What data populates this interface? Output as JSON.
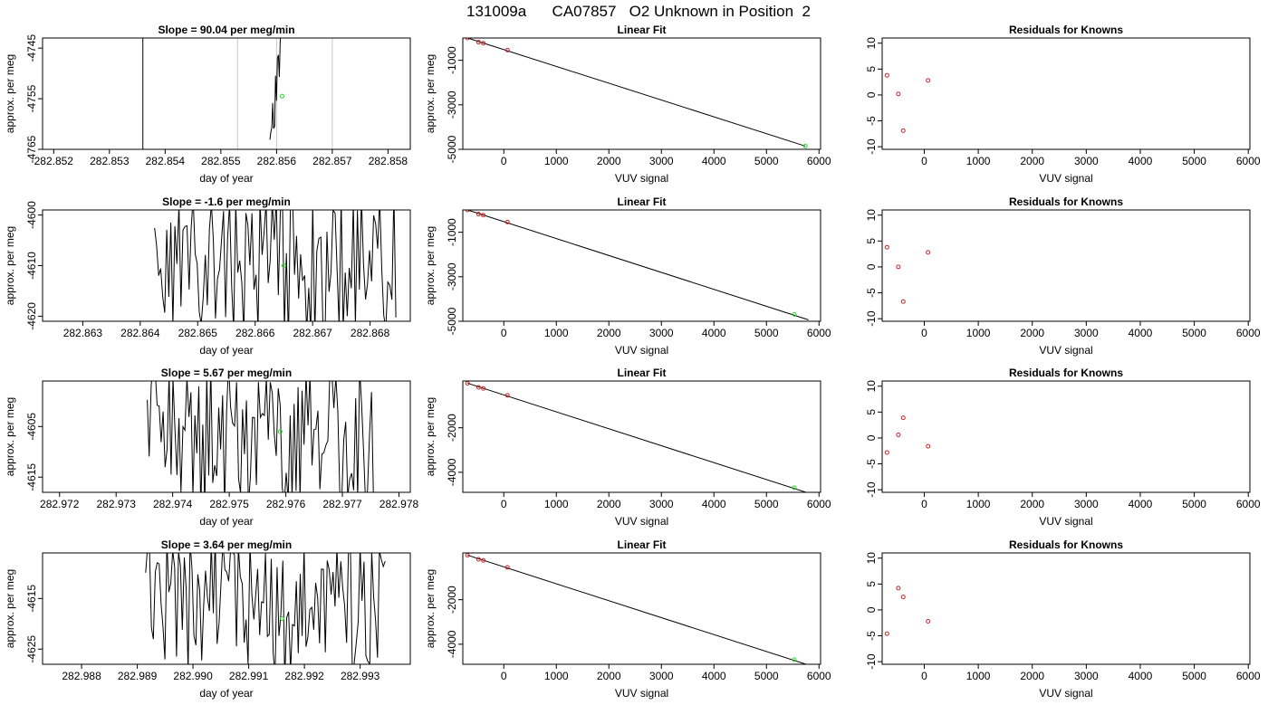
{
  "figure": {
    "title": "131009a      CA07857   O2 Unknown in Position  2"
  },
  "chart_data": [
    {
      "panel": "row1-timeseries",
      "type": "line",
      "title": "Slope =  90.04  per meg/min",
      "xlabel": "day of year",
      "ylabel": "approx. per meg",
      "xlim": [
        282.8518,
        282.8584
      ],
      "ylim": [
        -4765,
        -4743
      ],
      "xticks": [
        282.852,
        282.853,
        282.854,
        282.855,
        282.856,
        282.857,
        282.858
      ],
      "xtick_labels": [
        "282.852",
        "282.853",
        "282.854",
        "282.855",
        "282.856",
        "282.857",
        "282.858"
      ],
      "yticks": [
        -4745,
        -4755,
        -4765
      ],
      "ytick_labels": [
        "-4745",
        "-4755",
        "-4765"
      ],
      "vlines_black": [
        282.8536
      ],
      "vlines_gray": [
        282.8553,
        282.856,
        282.857
      ],
      "trace": {
        "seed": 11,
        "x_start": 282.85588,
        "x_end": 282.8561,
        "n": 14,
        "style": "ramp"
      },
      "green_marker": {
        "x": 282.8561,
        "y": -4754.5
      }
    },
    {
      "panel": "row1-linearfit",
      "type": "scatter",
      "title": "Linear Fit",
      "xlabel": "VUV signal",
      "ylabel": "approx. per meg",
      "xlim": [
        -780,
        6030
      ],
      "ylim": [
        -5000,
        0
      ],
      "xticks": [
        0,
        1000,
        2000,
        3000,
        4000,
        5000,
        6000
      ],
      "xtick_labels": [
        "0",
        "1000",
        "2000",
        "3000",
        "4000",
        "5000",
        "6000"
      ],
      "yticks": [
        -1000,
        -3000,
        -5000
      ],
      "ytick_labels": [
        "-1000",
        "-3000",
        "-5000"
      ],
      "knowns": [
        [
          -690,
          0
        ],
        [
          -480,
          -185
        ],
        [
          -390,
          -235
        ],
        [
          70,
          -545
        ]
      ],
      "unknown": [
        5740,
        -4855
      ],
      "fit_line": [
        [
          -690,
          0
        ],
        [
          5740,
          -4855
        ]
      ]
    },
    {
      "panel": "row1-residuals",
      "type": "scatter",
      "title": "Residuals for Knowns",
      "xlabel": "VUV signal",
      "xlim": [
        -780,
        6030
      ],
      "ylim": [
        -10.5,
        11
      ],
      "xticks": [
        0,
        1000,
        2000,
        3000,
        4000,
        5000,
        6000
      ],
      "xtick_labels": [
        "0",
        "1000",
        "2000",
        "3000",
        "4000",
        "5000",
        "6000"
      ],
      "yticks": [
        10,
        5,
        0,
        -5,
        -10
      ],
      "ytick_labels": [
        "10",
        "5",
        "0",
        "-5",
        "-10"
      ],
      "points": [
        [
          -690,
          3.8
        ],
        [
          -480,
          0.2
        ],
        [
          -390,
          -6.9
        ],
        [
          70,
          2.8
        ]
      ]
    },
    {
      "panel": "row2-timeseries",
      "type": "line",
      "title": "Slope =  -1.6  per meg/min",
      "xlabel": "day of year",
      "ylabel": "approx. per meg",
      "xlim": [
        282.8623,
        282.8687
      ],
      "ylim": [
        -4621,
        -4599
      ],
      "xticks": [
        282.863,
        282.864,
        282.865,
        282.866,
        282.867,
        282.868
      ],
      "xtick_labels": [
        "282.863",
        "282.864",
        "282.865",
        "282.866",
        "282.867",
        "282.868"
      ],
      "yticks": [
        -4600,
        -4610,
        -4620
      ],
      "ytick_labels": [
        "-4600",
        "-4610",
        "-4620"
      ],
      "vlines_black": [],
      "vlines_gray": [],
      "trace": {
        "seed": 23,
        "x_start": 282.86425,
        "x_end": 282.86845,
        "n": 120,
        "style": "noise"
      },
      "green_marker": {
        "x": 282.8665,
        "y": -4610
      }
    },
    {
      "panel": "row2-linearfit",
      "type": "scatter",
      "title": "Linear Fit",
      "xlabel": "VUV signal",
      "ylabel": "approx. per meg",
      "xlim": [
        -780,
        6030
      ],
      "ylim": [
        -5000,
        0
      ],
      "xticks": [
        0,
        1000,
        2000,
        3000,
        4000,
        5000,
        6000
      ],
      "xtick_labels": [
        "0",
        "1000",
        "2000",
        "3000",
        "4000",
        "5000",
        "6000"
      ],
      "yticks": [
        -1000,
        -3000,
        -5000
      ],
      "ytick_labels": [
        "-1000",
        "-3000",
        "-5000"
      ],
      "knowns": [
        [
          -690,
          0
        ],
        [
          -480,
          -185
        ],
        [
          -390,
          -235
        ],
        [
          70,
          -545
        ]
      ],
      "unknown": [
        5530,
        -4690
      ],
      "fit_line": [
        [
          -690,
          0
        ],
        [
          5800,
          -4935
        ]
      ]
    },
    {
      "panel": "row2-residuals",
      "type": "scatter",
      "title": "Residuals for Knowns",
      "xlabel": "VUV signal",
      "xlim": [
        -780,
        6030
      ],
      "ylim": [
        -10.5,
        11
      ],
      "xticks": [
        0,
        1000,
        2000,
        3000,
        4000,
        5000,
        6000
      ],
      "xtick_labels": [
        "0",
        "1000",
        "2000",
        "3000",
        "4000",
        "5000",
        "6000"
      ],
      "yticks": [
        10,
        5,
        0,
        -5,
        -10
      ],
      "ytick_labels": [
        "10",
        "5",
        "0",
        "-5",
        "-10"
      ],
      "points": [
        [
          -690,
          3.8
        ],
        [
          -480,
          0.0
        ],
        [
          -390,
          -6.7
        ],
        [
          70,
          2.8
        ]
      ]
    },
    {
      "panel": "row3-timeseries",
      "type": "line",
      "title": "Slope =  5.67  per meg/min",
      "xlabel": "day of year",
      "ylabel": "approx. per meg",
      "xlim": [
        282.9717,
        282.9782
      ],
      "ylim": [
        -4618,
        -4596
      ],
      "xticks": [
        282.972,
        282.973,
        282.974,
        282.975,
        282.976,
        282.977,
        282.978
      ],
      "xtick_labels": [
        "282.972",
        "282.973",
        "282.974",
        "282.975",
        "282.976",
        "282.977",
        "282.978"
      ],
      "yticks": [
        -4605,
        -4615
      ],
      "ytick_labels": [
        "-4605",
        "-4615"
      ],
      "vlines_black": [],
      "vlines_gray": [],
      "trace": {
        "seed": 37,
        "x_start": 282.97355,
        "x_end": 282.97755,
        "n": 115,
        "style": "noise"
      },
      "green_marker": {
        "x": 282.9759,
        "y": -4606
      }
    },
    {
      "panel": "row3-linearfit",
      "type": "scatter",
      "title": "Linear Fit",
      "xlabel": "VUV signal",
      "ylabel": "approx. per meg",
      "xlim": [
        -780,
        6030
      ],
      "ylim": [
        -4900,
        100
      ],
      "xticks": [
        0,
        1000,
        2000,
        3000,
        4000,
        5000,
        6000
      ],
      "xtick_labels": [
        "0",
        "1000",
        "2000",
        "3000",
        "4000",
        "5000",
        "6000"
      ],
      "yticks": [
        -2000,
        -4000
      ],
      "ytick_labels": [
        "-2000",
        "-4000"
      ],
      "knowns": [
        [
          -690,
          0
        ],
        [
          -480,
          -185
        ],
        [
          -390,
          -235
        ],
        [
          70,
          -545
        ]
      ],
      "unknown": [
        5530,
        -4690
      ],
      "fit_line": [
        [
          -690,
          0
        ],
        [
          5800,
          -4935
        ]
      ]
    },
    {
      "panel": "row3-residuals",
      "type": "scatter",
      "title": "Residuals for Knowns",
      "xlabel": "VUV signal",
      "xlim": [
        -780,
        6030
      ],
      "ylim": [
        -10.5,
        11
      ],
      "xticks": [
        0,
        1000,
        2000,
        3000,
        4000,
        5000,
        6000
      ],
      "xtick_labels": [
        "0",
        "1000",
        "2000",
        "3000",
        "4000",
        "5000",
        "6000"
      ],
      "yticks": [
        10,
        5,
        0,
        -5,
        -10
      ],
      "ytick_labels": [
        "10",
        "5",
        "0",
        "-5",
        "-10"
      ],
      "points": [
        [
          -690,
          -2.8
        ],
        [
          -480,
          0.6
        ],
        [
          -390,
          3.9
        ],
        [
          70,
          -1.6
        ]
      ]
    },
    {
      "panel": "row4-timeseries",
      "type": "line",
      "title": "Slope =  3.64  per meg/min",
      "xlabel": "day of year",
      "ylabel": "approx. per meg",
      "xlim": [
        282.9873,
        282.9939
      ],
      "ylim": [
        -4628,
        -4606
      ],
      "xticks": [
        282.988,
        282.989,
        282.99,
        282.991,
        282.992,
        282.993
      ],
      "xtick_labels": [
        "282.988",
        "282.989",
        "282.990",
        "282.991",
        "282.992",
        "282.993"
      ],
      "yticks": [
        -4615,
        -4625
      ],
      "ytick_labels": [
        "-4615",
        "-4625"
      ],
      "vlines_black": [],
      "vlines_gray": [],
      "trace": {
        "seed": 53,
        "x_start": 282.98915,
        "x_end": 282.99345,
        "n": 125,
        "style": "noise"
      },
      "green_marker": {
        "x": 282.9916,
        "y": -4619
      }
    },
    {
      "panel": "row4-linearfit",
      "type": "scatter",
      "title": "Linear Fit",
      "xlabel": "VUV signal",
      "ylabel": "approx. per meg",
      "xlim": [
        -780,
        6030
      ],
      "ylim": [
        -4900,
        100
      ],
      "xticks": [
        0,
        1000,
        2000,
        3000,
        4000,
        5000,
        6000
      ],
      "xtick_labels": [
        "0",
        "1000",
        "2000",
        "3000",
        "4000",
        "5000",
        "6000"
      ],
      "yticks": [
        -2000,
        -4000
      ],
      "ytick_labels": [
        "-2000",
        "-4000"
      ],
      "knowns": [
        [
          -690,
          0
        ],
        [
          -480,
          -185
        ],
        [
          -390,
          -235
        ],
        [
          70,
          -545
        ]
      ],
      "unknown": [
        5530,
        -4690
      ],
      "fit_line": [
        [
          -690,
          0
        ],
        [
          5800,
          -4935
        ]
      ]
    },
    {
      "panel": "row4-residuals",
      "type": "scatter",
      "title": "Residuals for Knowns",
      "xlabel": "VUV signal",
      "xlim": [
        -780,
        6030
      ],
      "ylim": [
        -10.5,
        11
      ],
      "xticks": [
        0,
        1000,
        2000,
        3000,
        4000,
        5000,
        6000
      ],
      "xtick_labels": [
        "0",
        "1000",
        "2000",
        "3000",
        "4000",
        "5000",
        "6000"
      ],
      "yticks": [
        10,
        5,
        0,
        -5,
        -10
      ],
      "ytick_labels": [
        "10",
        "5",
        "0",
        "-5",
        "-10"
      ],
      "points": [
        [
          -690,
          -4.6
        ],
        [
          -480,
          4.2
        ],
        [
          -390,
          2.5
        ],
        [
          70,
          -2.2
        ]
      ]
    }
  ],
  "colors": {
    "axis": "#000000",
    "trace": "#000000",
    "gray_line": "#c8c8c8",
    "known_point": "#cc2222",
    "unknown_point": "#22dd22",
    "fit_line": "#000000"
  }
}
